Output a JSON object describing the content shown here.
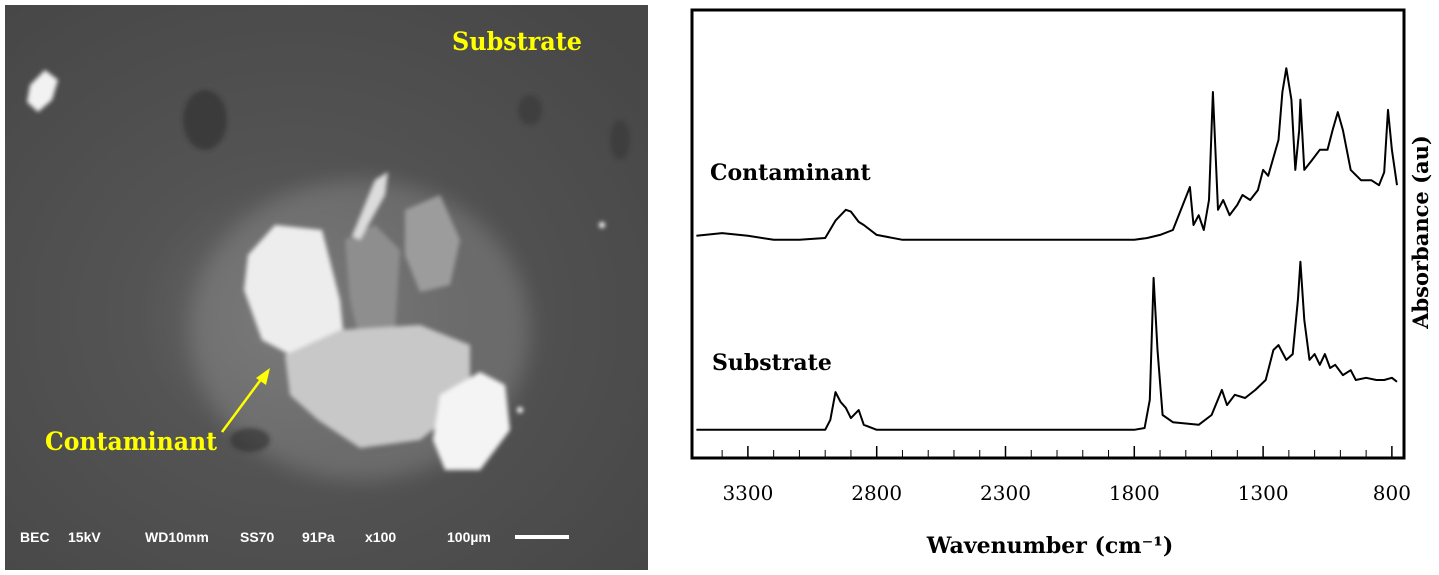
{
  "image": {
    "labels": [
      "Substrate",
      "Contaminant"
    ],
    "info": [
      "BEC",
      "15kV",
      "WD10mm",
      "SS70",
      "91Pa",
      "x100",
      "100µm"
    ]
  },
  "chart_data": {
    "type": "line",
    "xlabel": "Wavenumber (cm⁻¹)",
    "ylabel": "Absorbance (au)",
    "xlim": [
      3517,
      753
    ],
    "ylim": [
      0,
      100
    ],
    "xticks": [
      3300,
      2800,
      2300,
      1800,
      1300,
      800
    ],
    "xminorticks": [
      3400,
      3300,
      3200,
      3100,
      3000,
      2900,
      2800,
      2700,
      2600,
      2500,
      2400,
      2300,
      2200,
      2100,
      2000,
      1900,
      1800,
      1700,
      1600,
      1500,
      1400,
      1300,
      1200,
      1100,
      1000,
      900,
      800
    ],
    "series": [
      {
        "name": "Contaminant",
        "color": "#000000",
        "x": [
          3500,
          3400,
          3300,
          3200,
          3100,
          3000,
          2960,
          2920,
          2900,
          2870,
          2850,
          2800,
          2700,
          2000,
          1800,
          1750,
          1700,
          1650,
          1584,
          1570,
          1550,
          1530,
          1510,
          1495,
          1475,
          1455,
          1430,
          1400,
          1380,
          1350,
          1320,
          1300,
          1280,
          1240,
          1225,
          1210,
          1190,
          1175,
          1160,
          1155,
          1140,
          1110,
          1080,
          1050,
          1030,
          1010,
          990,
          960,
          920,
          880,
          850,
          830,
          815,
          800,
          780
        ],
        "values": [
          49.6,
          50.2,
          49.6,
          48.7,
          48.7,
          49.1,
          53,
          55.4,
          55,
          52.7,
          52,
          49.8,
          48.7,
          48.7,
          48.7,
          49.1,
          49.8,
          50.9,
          60.5,
          52,
          54.2,
          50.9,
          57.6,
          81.7,
          55.4,
          57.6,
          54.2,
          56.5,
          58.7,
          57.6,
          59.8,
          64.3,
          63,
          71,
          81.7,
          87,
          80,
          64.3,
          73.2,
          80,
          64.3,
          66.5,
          68.8,
          68.8,
          73.2,
          77.2,
          73.2,
          64.3,
          62,
          62,
          60.9,
          63.8,
          77.7,
          68.8,
          60.9
        ]
      },
      {
        "name": "Substrate",
        "color": "#000000",
        "x": [
          3500,
          3000,
          2980,
          2960,
          2940,
          2920,
          2900,
          2870,
          2850,
          2800,
          1800,
          1760,
          1740,
          1725,
          1710,
          1690,
          1650,
          1550,
          1500,
          1460,
          1440,
          1410,
          1370,
          1330,
          1290,
          1260,
          1240,
          1210,
          1185,
          1165,
          1155,
          1140,
          1120,
          1100,
          1080,
          1060,
          1040,
          1020,
          990,
          960,
          940,
          900,
          860,
          830,
          800,
          780
        ],
        "values": [
          6.3,
          6.3,
          8.5,
          14.7,
          12.5,
          11.2,
          8.9,
          10.7,
          7.4,
          6.3,
          6.3,
          6.7,
          13,
          40.2,
          24.1,
          9.6,
          8,
          7.4,
          9.6,
          15.2,
          11.8,
          14.1,
          13.4,
          15.2,
          17.4,
          24.1,
          25.2,
          21.9,
          23.2,
          35.3,
          43.8,
          30.8,
          21.9,
          23.2,
          20.8,
          23.2,
          20.1,
          20.8,
          18.5,
          19.6,
          17.4,
          17.9,
          17.4,
          17.4,
          17.9,
          17
        ]
      }
    ]
  }
}
